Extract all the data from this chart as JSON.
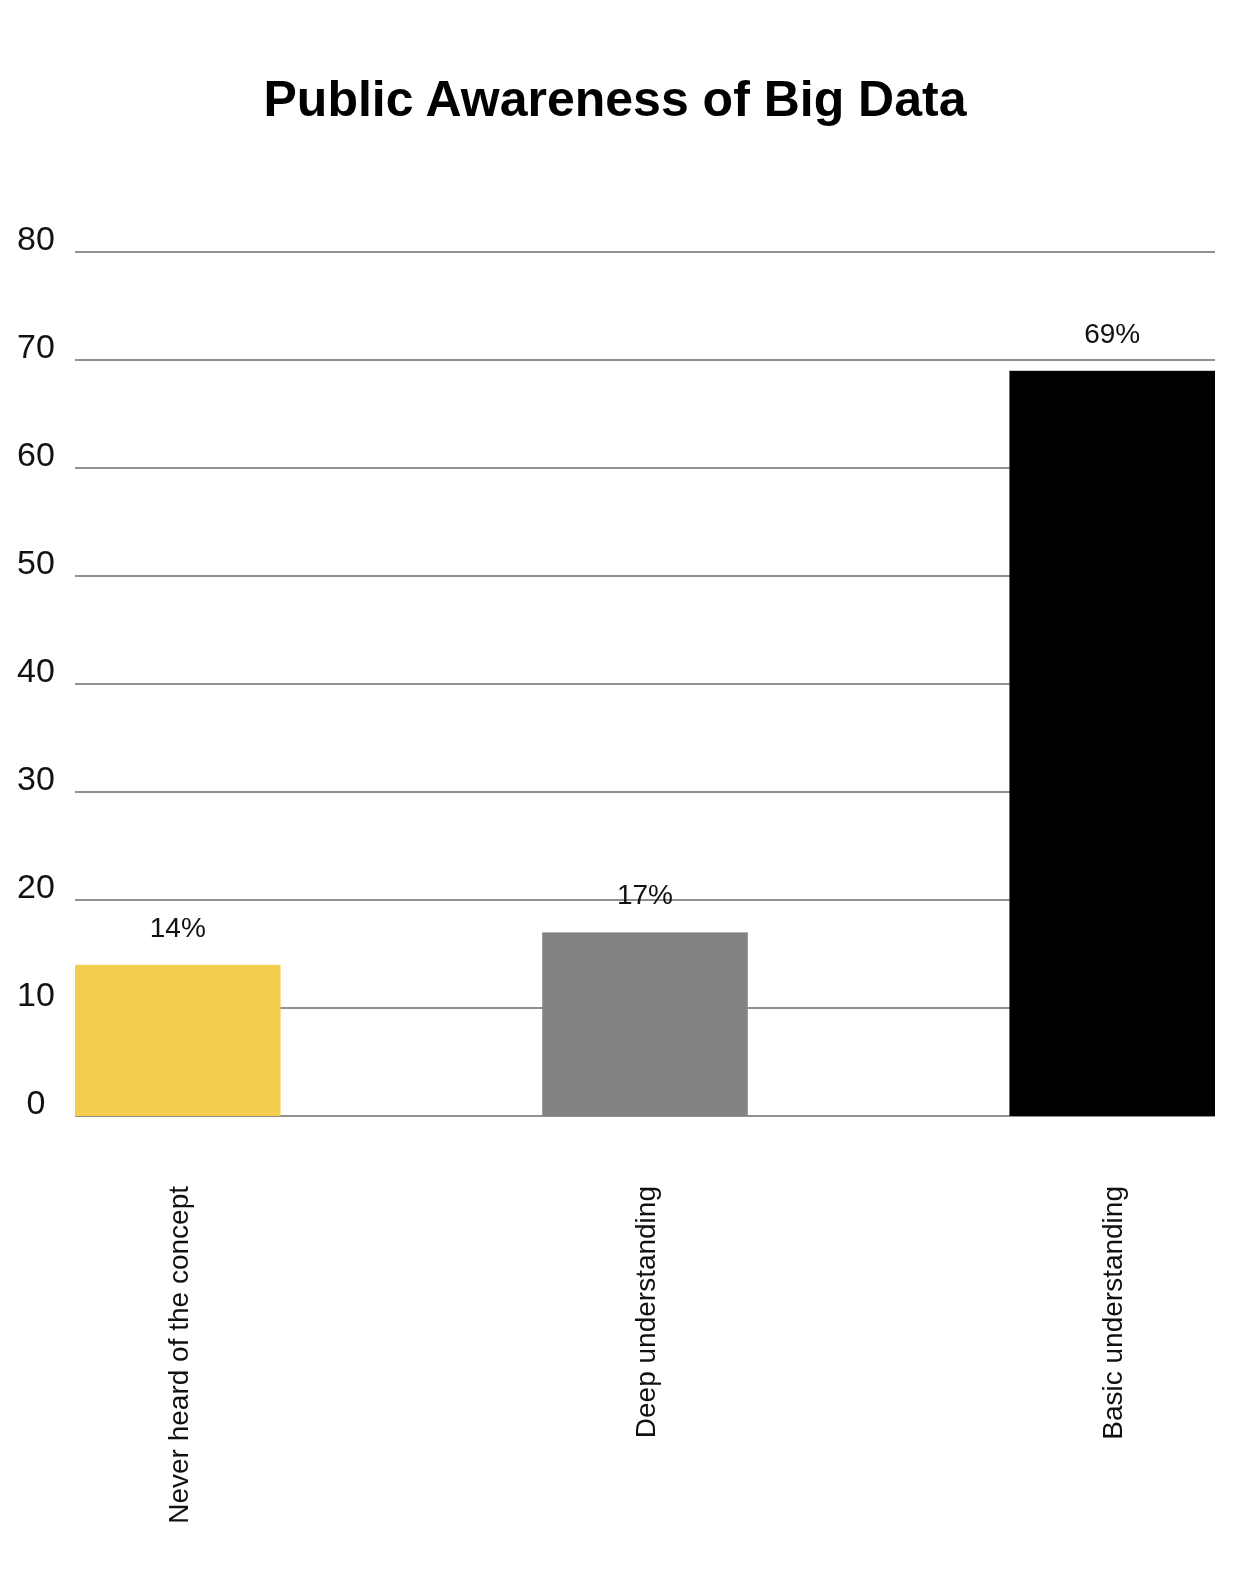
{
  "chart_data": {
    "type": "bar",
    "title": "Public Awareness of Big Data",
    "categories": [
      "Never heard of the concept",
      "Deep understanding",
      "Basic understanding"
    ],
    "values": [
      14,
      17,
      69
    ],
    "colors": [
      "#f5cd4f",
      "#838285",
      "#000000"
    ],
    "value_labels": [
      "14%",
      "17%",
      "69%"
    ],
    "ylim": [
      0,
      80
    ],
    "yticks": [
      0,
      10,
      20,
      30,
      40,
      50,
      60,
      70,
      80
    ],
    "grid": "y"
  }
}
